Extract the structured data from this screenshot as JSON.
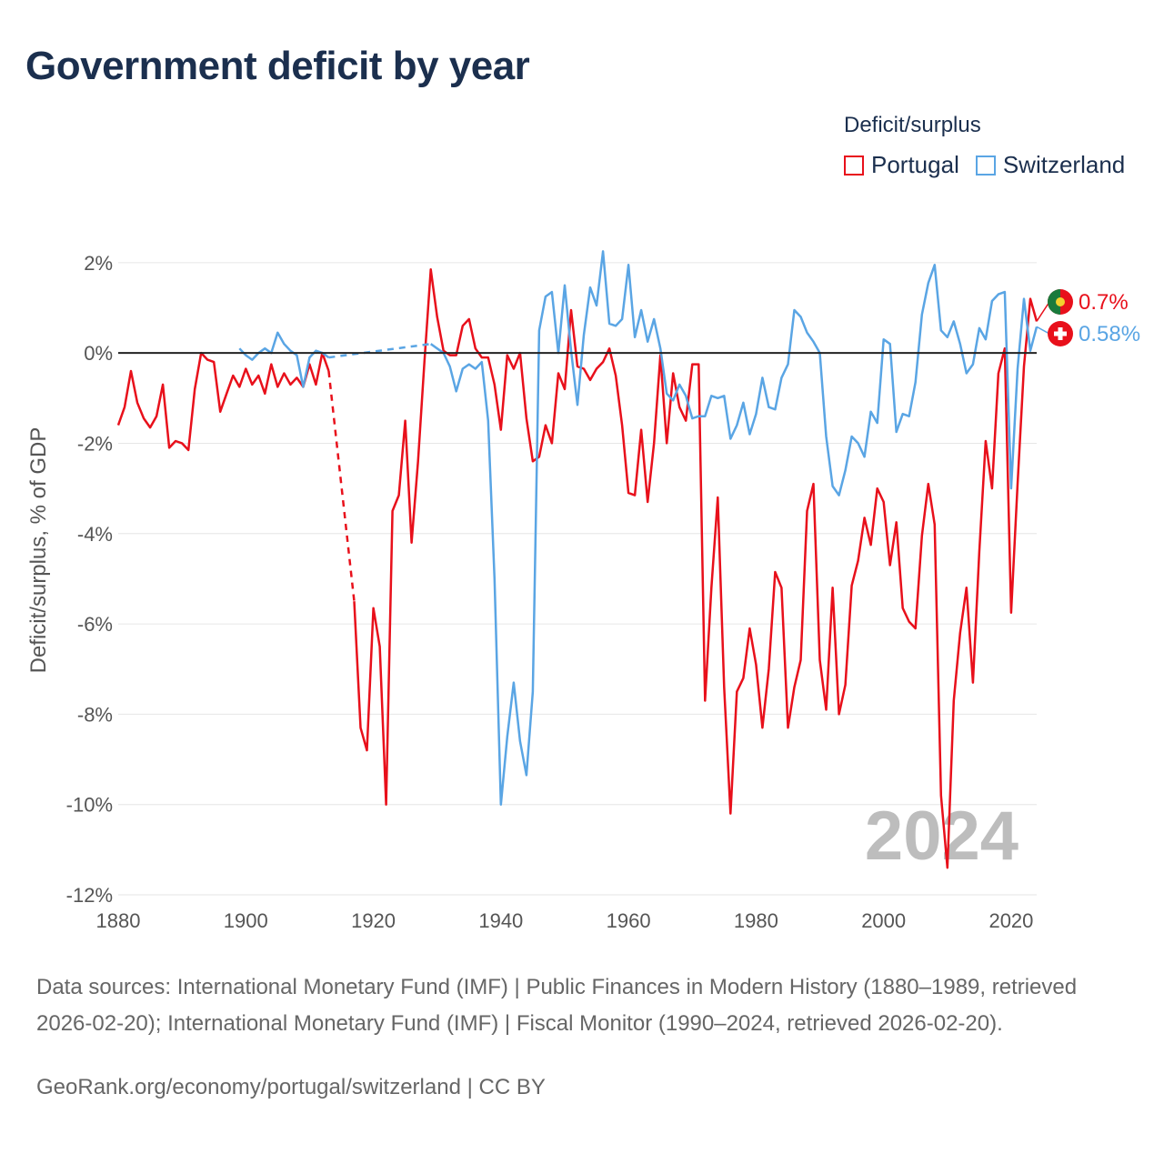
{
  "header": {
    "title": "Government deficit by year"
  },
  "legend": {
    "title": "Deficit/surplus",
    "items": [
      {
        "label": "Portugal",
        "color": "#e8101b"
      },
      {
        "label": "Switzerland",
        "color": "#5aa5e4"
      }
    ]
  },
  "footer": {
    "sources": "Data sources: International Monetary Fund (IMF) | Public Finances in Modern History (1880–1989, retrieved 2026-02-20); International Monetary Fund (IMF) | Fiscal Monitor (1990–2024, retrieved 2026-02-20).",
    "credit": "GeoRank.org/economy/portugal/switzerland | CC BY"
  },
  "chart_data": {
    "type": "line",
    "title": "Government deficit by year",
    "xlabel": "",
    "ylabel": "Deficit/surplus, % of GDP",
    "xlim": [
      1880,
      2024
    ],
    "ylim": [
      -12,
      2.5
    ],
    "x_ticks": [
      1880,
      1900,
      1920,
      1940,
      1960,
      1980,
      2000,
      2020
    ],
    "x_tick_labels": [
      "1880",
      "1900",
      "1920",
      "1940",
      "1960",
      "1980",
      "2000",
      "2020"
    ],
    "y_ticks": [
      2,
      0,
      -2,
      -4,
      -6,
      -8,
      -10,
      -12
    ],
    "y_tick_labels": [
      "2%",
      "0%",
      "-2%",
      "-4%",
      "-6%",
      "-8%",
      "-10%",
      "-12%"
    ],
    "grid": true,
    "legend_position": "top-right",
    "highlighted_year": "2024",
    "series": [
      {
        "name": "Portugal",
        "color": "#e8101b",
        "end_label": "0.7%",
        "gap_dashed": [
          [
            1913,
            -0.4
          ],
          [
            1917,
            -5.5
          ]
        ],
        "x": [
          1880,
          1881,
          1882,
          1883,
          1884,
          1885,
          1886,
          1887,
          1888,
          1889,
          1890,
          1891,
          1892,
          1893,
          1894,
          1895,
          1896,
          1897,
          1898,
          1899,
          1900,
          1901,
          1902,
          1903,
          1904,
          1905,
          1906,
          1907,
          1908,
          1909,
          1910,
          1911,
          1912,
          1913,
          null,
          1917,
          1918,
          1919,
          1920,
          1921,
          1922,
          1923,
          1924,
          1925,
          1926,
          1927,
          1928,
          1929,
          1930,
          1931,
          1932,
          1933,
          1934,
          1935,
          1936,
          1937,
          1938,
          1939,
          1940,
          1941,
          1942,
          1943,
          1944,
          1945,
          1946,
          1947,
          1948,
          1949,
          1950,
          1951,
          1952,
          1953,
          1954,
          1955,
          1956,
          1957,
          1958,
          1959,
          1960,
          1961,
          1962,
          1963,
          1964,
          1965,
          1966,
          1967,
          1968,
          1969,
          1970,
          1971,
          1972,
          1973,
          1974,
          1975,
          1976,
          1977,
          1978,
          1979,
          1980,
          1981,
          1982,
          1983,
          1984,
          1985,
          1986,
          1987,
          1988,
          1989,
          1990,
          1991,
          1992,
          1993,
          1994,
          1995,
          1996,
          1997,
          1998,
          1999,
          2000,
          2001,
          2002,
          2003,
          2004,
          2005,
          2006,
          2007,
          2008,
          2009,
          2010,
          2011,
          2012,
          2013,
          2014,
          2015,
          2016,
          2017,
          2018,
          2019,
          2020,
          2021,
          2022,
          2023,
          2024
        ],
        "values": [
          -1.6,
          -1.2,
          -0.4,
          -1.1,
          -1.45,
          -1.65,
          -1.4,
          -0.7,
          -2.1,
          -1.95,
          -2.0,
          -2.15,
          -0.8,
          0.0,
          -0.15,
          -0.2,
          -1.3,
          -0.9,
          -0.5,
          -0.75,
          -0.35,
          -0.7,
          -0.5,
          -0.9,
          -0.25,
          -0.75,
          -0.45,
          -0.7,
          -0.55,
          -0.75,
          -0.25,
          -0.7,
          0.0,
          -0.4,
          null,
          -5.5,
          -8.3,
          -8.8,
          -5.65,
          -6.5,
          -10.0,
          -3.5,
          -3.15,
          -1.5,
          -4.2,
          -2.4,
          -0.2,
          1.85,
          0.8,
          0.05,
          -0.05,
          -0.05,
          0.6,
          0.75,
          0.1,
          -0.1,
          -0.1,
          -0.7,
          -1.7,
          -0.05,
          -0.35,
          0.0,
          -1.45,
          -2.4,
          -2.3,
          -1.6,
          -2.0,
          -0.45,
          -0.8,
          0.95,
          -0.3,
          -0.35,
          -0.6,
          -0.35,
          -0.2,
          0.1,
          -0.5,
          -1.6,
          -3.1,
          -3.15,
          -1.7,
          -3.3,
          -2.0,
          -0.05,
          -2.0,
          -0.45,
          -1.2,
          -1.5,
          -0.25,
          -0.25,
          -7.7,
          -5.2,
          -3.2,
          -7.4,
          -10.2,
          -7.5,
          -7.2,
          -6.1,
          -6.9,
          -8.3,
          -7.0,
          -4.85,
          -5.2,
          -8.3,
          -7.4,
          -6.8,
          -3.5,
          -2.9,
          -6.8,
          -7.9,
          -5.2,
          -8.0,
          -7.35,
          -5.15,
          -4.6,
          -3.65,
          -4.25,
          -3.0,
          -3.3,
          -4.7,
          -3.75,
          -5.65,
          -5.95,
          -6.1,
          -4.05,
          -2.9,
          -3.8,
          -9.8,
          -11.4,
          -7.7,
          -6.2,
          -5.2,
          -7.3,
          -4.4,
          -1.95,
          -3.0,
          -0.45,
          0.1,
          -5.75,
          -2.9,
          -0.3,
          1.2,
          0.7
        ]
      },
      {
        "name": "Switzerland",
        "color": "#5aa5e4",
        "end_label": "0.58%",
        "gap_dashed": [
          [
            1913,
            -0.1
          ],
          [
            1929,
            0.2
          ]
        ],
        "x": [
          1899,
          1900,
          1901,
          1902,
          1903,
          1904,
          1905,
          1906,
          1907,
          1908,
          1909,
          1910,
          1911,
          1912,
          1913,
          null,
          1929,
          1930,
          1931,
          1932,
          1933,
          1934,
          1935,
          1936,
          1937,
          1938,
          1939,
          1940,
          1941,
          1942,
          1943,
          1944,
          1945,
          1946,
          1947,
          1948,
          1949,
          1950,
          1951,
          1952,
          1953,
          1954,
          1955,
          1956,
          1957,
          1958,
          1959,
          1960,
          1961,
          1962,
          1963,
          1964,
          1965,
          1966,
          1967,
          1968,
          1969,
          1970,
          1971,
          1972,
          1973,
          1974,
          1975,
          1976,
          1977,
          1978,
          1979,
          1980,
          1981,
          1982,
          1983,
          1984,
          1985,
          1986,
          1987,
          1988,
          1989,
          1990,
          1991,
          1992,
          1993,
          1994,
          1995,
          1996,
          1997,
          1998,
          1999,
          2000,
          2001,
          2002,
          2003,
          2004,
          2005,
          2006,
          2007,
          2008,
          2009,
          2010,
          2011,
          2012,
          2013,
          2014,
          2015,
          2016,
          2017,
          2018,
          2019,
          2020,
          2021,
          2022,
          2023,
          2024
        ],
        "values": [
          0.1,
          -0.05,
          -0.15,
          0.0,
          0.1,
          0.0,
          0.45,
          0.2,
          0.05,
          -0.05,
          -0.75,
          -0.1,
          0.05,
          0.0,
          -0.1,
          null,
          0.2,
          0.1,
          0.0,
          -0.3,
          -0.85,
          -0.35,
          -0.25,
          -0.35,
          -0.2,
          -1.5,
          -5.0,
          -10.0,
          -8.5,
          -7.3,
          -8.6,
          -9.35,
          -7.5,
          0.5,
          1.25,
          1.35,
          0.0,
          1.5,
          0.05,
          -1.15,
          0.4,
          1.45,
          1.05,
          2.25,
          0.65,
          0.6,
          0.75,
          1.95,
          0.35,
          0.95,
          0.25,
          0.75,
          0.1,
          -0.9,
          -1.05,
          -0.7,
          -0.95,
          -1.45,
          -1.4,
          -1.4,
          -0.95,
          -1.0,
          -0.95,
          -1.9,
          -1.6,
          -1.1,
          -1.8,
          -1.35,
          -0.55,
          -1.2,
          -1.25,
          -0.55,
          -0.25,
          0.95,
          0.8,
          0.45,
          0.25,
          0.0,
          -1.85,
          -2.95,
          -3.15,
          -2.6,
          -1.85,
          -2.0,
          -2.3,
          -1.3,
          -1.55,
          0.3,
          0.2,
          -1.75,
          -1.35,
          -1.4,
          -0.65,
          0.85,
          1.55,
          1.95,
          0.5,
          0.35,
          0.7,
          0.2,
          -0.45,
          -0.25,
          0.55,
          0.3,
          1.15,
          1.3,
          1.35,
          -3.0,
          -0.35,
          1.2,
          0.05,
          0.58
        ]
      }
    ]
  }
}
